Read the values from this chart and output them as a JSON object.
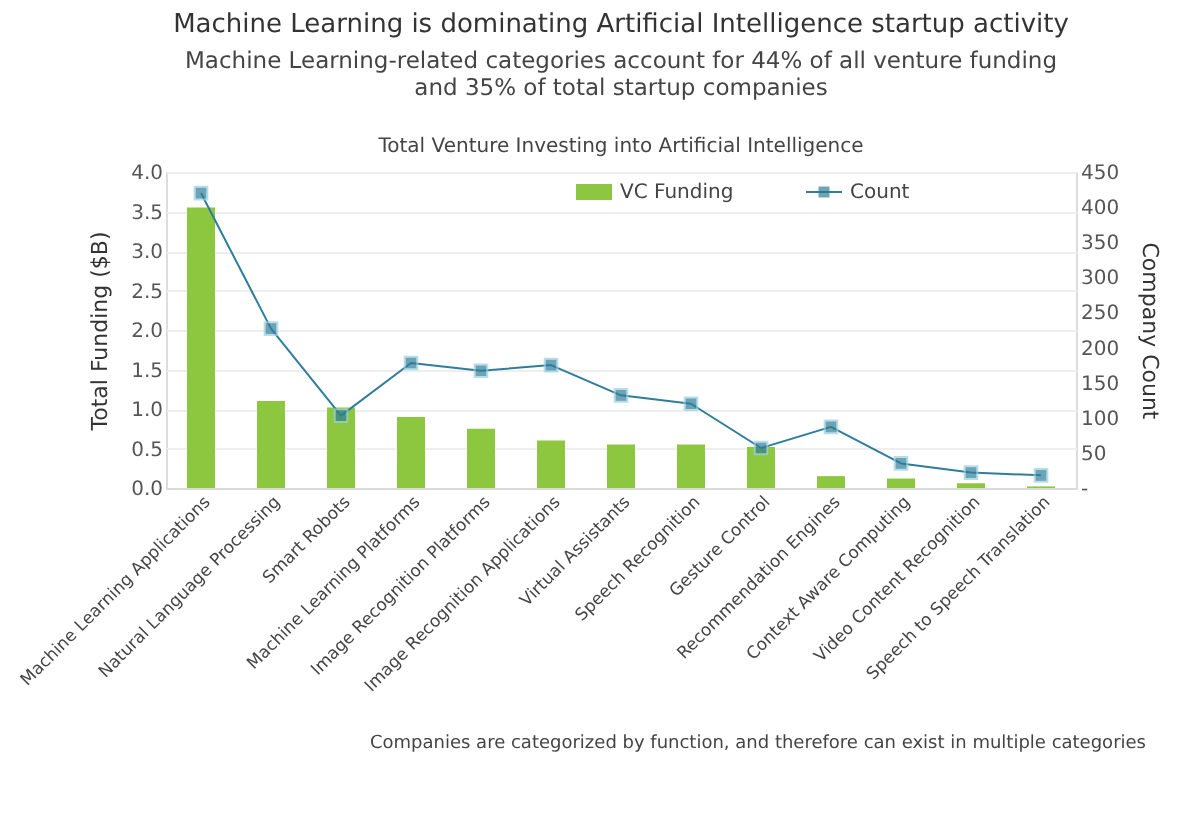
{
  "chart_data": {
    "type": "bar",
    "title": "Machine Learning is dominating Artificial Intelligence startup activity",
    "subtitle": [
      "Machine Learning-related categories account for 44% of all venture funding",
      "and 35% of total startup companies"
    ],
    "annotations": [
      "Total Venture Investing into Artificial Intelligence",
      "Companies are categorized by function, and therefore can exist in multiple categories"
    ],
    "categories": [
      "Machine Learning Applications",
      "Natural Language Processing",
      "Smart Robots",
      "Machine Learning Platforms",
      "Image Recognition Platforms",
      "Image Recognition Applications",
      "Virtual Assistants",
      "Speech Recognition",
      "Gesture Control",
      "Recommendation Engines",
      "Context Aware Computing",
      "Video Content Recognition",
      "Speech to Speech Translation"
    ],
    "series": [
      {
        "name": "VC Funding",
        "color": "#8dc63f",
        "values": [
          3.55,
          1.1,
          1.02,
          0.9,
          0.75,
          0.6,
          0.55,
          0.55,
          0.52,
          0.15,
          0.12,
          0.06,
          0.02
        ]
      },
      {
        "name": "Count",
        "type": "line",
        "axis": "y2",
        "color": "#2e7d9a",
        "marker": "square",
        "values": [
          420,
          227,
          103,
          178,
          167,
          175,
          132,
          120,
          57,
          87,
          35,
          22,
          18
        ]
      }
    ],
    "ylabel": "Total Funding ($B)",
    "y2label": "Company Count",
    "ylim": [
      0,
      4
    ],
    "yticks": [
      {
        "value": 0,
        "label": "0.0"
      },
      {
        "value": 0.5,
        "label": "0.5"
      },
      {
        "value": 1,
        "label": "1.0"
      },
      {
        "value": 1.5,
        "label": "1.5"
      },
      {
        "value": 2,
        "label": "2.0"
      },
      {
        "value": 2.5,
        "label": "2.5"
      },
      {
        "value": 3,
        "label": "3.0"
      },
      {
        "value": 3.5,
        "label": "3.5"
      },
      {
        "value": 4,
        "label": "4.0"
      }
    ],
    "y2lim": [
      0,
      450
    ],
    "y2ticks": [
      {
        "value": 0,
        "label": "-"
      },
      50,
      100,
      150,
      200,
      250,
      300,
      350,
      400,
      450
    ],
    "grid": "y",
    "legend": "top right"
  }
}
